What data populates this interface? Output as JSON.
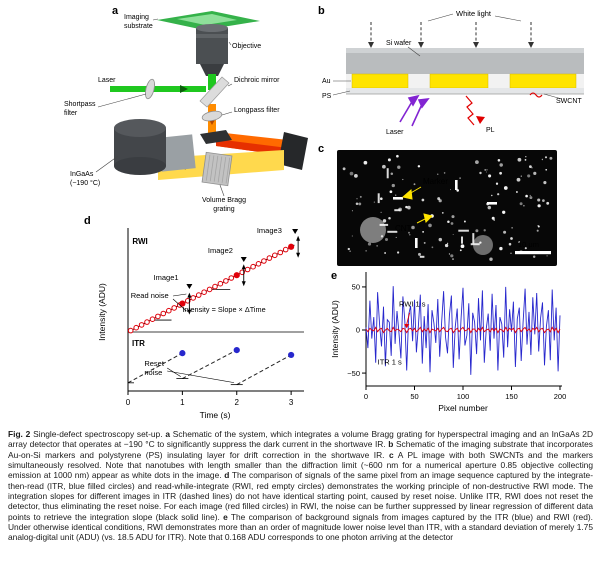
{
  "figure": {
    "caption": {
      "segments": [
        {
          "bold": true,
          "text": "Fig. 2 "
        },
        {
          "bold": false,
          "text": "Single-defect spectroscopy set-up. "
        },
        {
          "bold": true,
          "text": "a"
        },
        {
          "bold": false,
          "text": " Schematic of the system, which integrates a volume Bragg grating for hyperspectral imaging and an InGaAs 2D array detector that operates at −190 °C to significantly suppress the dark current in the shortwave IR. "
        },
        {
          "bold": true,
          "text": "b"
        },
        {
          "bold": false,
          "text": " Schematic of the imaging substrate that incorporates Au-on-Si markers and polystyrene (PS) insulating layer for drift correction in the shortwave IR. "
        },
        {
          "bold": true,
          "text": "c"
        },
        {
          "bold": false,
          "text": " A PL image with both SWCNTs and the markers simultaneously resolved. Note that nanotubes with length smaller than the diffraction limit (~600 nm for a numerical aperture 0.85 objective collecting emission at 1000 nm) appear as white dots in the image. "
        },
        {
          "bold": true,
          "text": "d"
        },
        {
          "bold": false,
          "text": " The comparison of signals of the same pixel from an image sequence captured by the integrate-then-read (ITR, blue filled circles) and read-while-integrate (RWI, red empty circles) demonstrates the working principle of non-destructive RWI mode. The integration slopes for different images in ITR (dashed lines) do not have identical starting point, caused by reset noise. Unlike ITR, RWI does not reset the detector, thus eliminating the reset noise. For each image (red filled circles) in RWI, the noise can be further suppressed by linear regression of different data points to retrieve the integration slope (black solid line). "
        },
        {
          "bold": true,
          "text": "e"
        },
        {
          "bold": false,
          "text": " The comparison of background signals from images captured by the ITR (blue) and RWI (red). Under otherwise identical conditions, RWI demonstrates more than an order of magnitude lower noise level than ITR, with a standard deviation of merely 1.75 analog-digital unit (ADU) (vs. 18.5 ADU for ITR). Note that 0.168 ADU corresponds to one photon arriving at the detector"
        }
      ]
    }
  },
  "panels": {
    "a": {
      "label": "a",
      "imaging_substrate_lines": [
        "Imaging",
        "substrate"
      ],
      "objective": "Objective",
      "laser": "Laser",
      "shortpass_lines": [
        "Shortpass",
        "filter"
      ],
      "dichroic": "Dichroic mirror",
      "longpass": "Longpass filter",
      "ingaas_lines": [
        "InGaAs",
        "(−190 °C)"
      ],
      "vbg_lines": [
        "Volume Bragg",
        "grating"
      ]
    },
    "b": {
      "label": "b",
      "white_light": "White light",
      "si_wafer": "Si wafer",
      "au": "Au",
      "ps": "PS",
      "swcnt": "SWCNT",
      "laser": "Laser",
      "pl": "PL"
    },
    "c": {
      "label": "c",
      "marker": "Marker",
      "cnt": "CNT",
      "scale_bar": "10 μm"
    },
    "d": {
      "label": "d"
    },
    "e": {
      "label": "e"
    }
  },
  "colors": {
    "rwi_red": "#e1000a",
    "itr_blue": "#2727cd",
    "laser_green": "#1fc81f",
    "gold": "#ffe400",
    "annotation_yellow": "#ffe400"
  },
  "chart_data": [
    {
      "type": "line",
      "panel": "d",
      "xlabel": "Time (s)",
      "ylabel": "Intensity (ADU)",
      "xticks": [
        0,
        1,
        2,
        3
      ],
      "xlim": [
        0,
        3.2
      ],
      "rwi": {
        "label": "RWI",
        "slope": 1,
        "open_circles_t": [
          0.05,
          0.15,
          0.25,
          0.35,
          0.45,
          0.55,
          0.65,
          0.75,
          0.85,
          0.95,
          1.1,
          1.2,
          1.3,
          1.4,
          1.5,
          1.6,
          1.7,
          1.8,
          1.9,
          2.1,
          2.2,
          2.3,
          2.4,
          2.5,
          2.6,
          2.7,
          2.8,
          2.9
        ],
        "filled_circles_t": [
          1,
          2,
          3
        ],
        "labels": {
          "image1": "Image1",
          "image2": "Image2",
          "image3": "Image3",
          "read_noise": "Read noise",
          "equation": "Intensity = Slope × ΔTime"
        }
      },
      "itr": {
        "label": "ITR",
        "ramps": [
          {
            "t": [
              0,
              1
            ],
            "y": [
              0.02,
              1.0
            ]
          },
          {
            "t": [
              1,
              2
            ],
            "y": [
              0.16,
              1.1
            ]
          },
          {
            "t": [
              2,
              3
            ],
            "y": [
              -0.04,
              0.94
            ]
          }
        ],
        "filled_circles": [
          {
            "t": 1,
            "y": 1.0
          },
          {
            "t": 2,
            "y": 1.1
          },
          {
            "t": 3,
            "y": 0.94
          }
        ],
        "labels": {
          "reset_noise_lines": [
            "Reset",
            "noise"
          ]
        }
      }
    },
    {
      "type": "line",
      "panel": "e",
      "xlabel": "Pixel number",
      "ylabel": "Intensity (ADU)",
      "xticks": [
        0,
        50,
        100,
        150,
        200
      ],
      "yticks": [
        50,
        0,
        -50
      ],
      "ytick_labels": [
        "50",
        "0",
        "−50"
      ],
      "xlim": [
        0,
        200
      ],
      "ylim": [
        -65,
        65
      ],
      "x_step": 2,
      "series": [
        {
          "name": "ITR 1 s",
          "color": "#2727cd",
          "values": [
            3,
            -21,
            34,
            -10,
            15,
            -38,
            44,
            6,
            -19,
            27,
            -42,
            12,
            9,
            -30,
            51,
            -16,
            22,
            -4,
            -33,
            39,
            11,
            -47,
            18,
            28,
            -13,
            35,
            -26,
            5,
            41,
            -39,
            16,
            -21,
            30,
            -49,
            23,
            8,
            -15,
            36,
            -31,
            10,
            45,
            -8,
            -27,
            17,
            40,
            -44,
            3,
            25,
            -34,
            14,
            49,
            -18,
            -6,
            31,
            -52,
            20,
            9,
            -28,
            37,
            -12,
            46,
            -38,
            2,
            19,
            -24,
            42,
            -10,
            29,
            -47,
            15,
            7,
            -32,
            50,
            -20,
            24,
            -2,
            33,
            -43,
            13,
            26,
            -36,
            9,
            48,
            -17,
            21,
            -29,
            38,
            -5,
            43,
            -25,
            14,
            32,
            -41,
            4,
            23,
            -35,
            47,
            -12,
            26,
            -48,
            17
          ]
        },
        {
          "name": "RWI 1 s",
          "color": "#e1000a",
          "values": [
            1,
            -2,
            2,
            0,
            -1,
            3,
            -2,
            1,
            2,
            -3,
            0,
            2,
            -1,
            -2,
            3,
            -1,
            1,
            0,
            -2,
            2,
            1,
            -3,
            1,
            2,
            -1,
            2,
            -2,
            0,
            3,
            -2,
            1,
            -1,
            2,
            -3,
            1,
            0,
            -1,
            2,
            -2,
            1,
            3,
            -1,
            -2,
            1,
            2,
            -3,
            0,
            2,
            -2,
            1,
            3,
            -1,
            0,
            2,
            -3,
            1,
            1,
            -2,
            2,
            -1,
            3,
            -2,
            0,
            1,
            -2,
            2,
            -1,
            2,
            -3,
            1,
            0,
            -2,
            3,
            -1,
            2,
            0,
            2,
            -3,
            1,
            2,
            -2,
            1,
            3,
            -1,
            1,
            -2,
            2,
            0,
            3,
            -2,
            1,
            2,
            -3,
            0,
            1,
            -2,
            3,
            -1,
            2,
            -3,
            1
          ]
        }
      ]
    }
  ]
}
